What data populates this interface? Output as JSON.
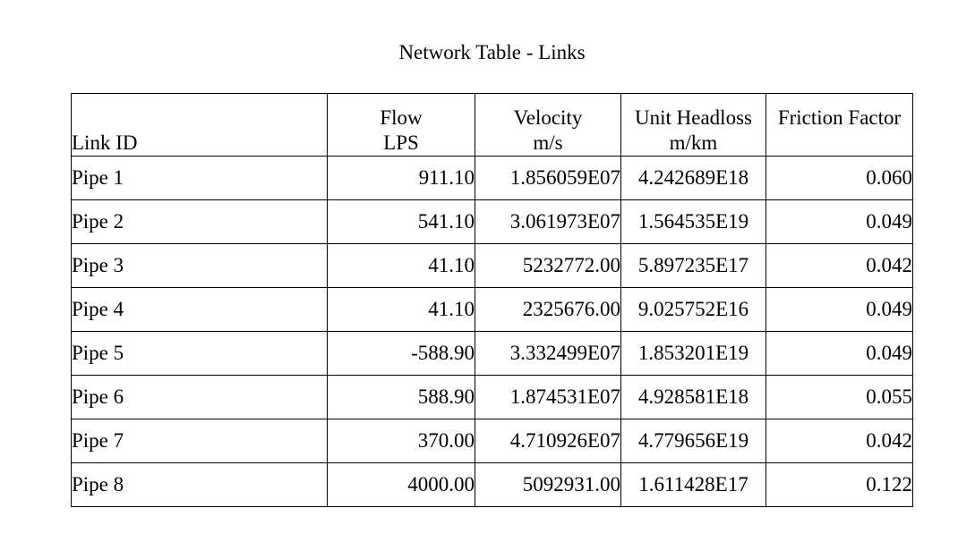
{
  "document": {
    "title": "Network Table - Links"
  },
  "table": {
    "headers": {
      "link_id": "Link ID",
      "flow": {
        "name": "Flow",
        "unit": "LPS"
      },
      "velocity": {
        "name": "Velocity",
        "unit": "m/s"
      },
      "unit_headloss": {
        "name": "Unit Headloss",
        "unit": "m/km"
      },
      "friction_factor": {
        "name": "Friction Factor",
        "unit": ""
      }
    },
    "rows": [
      {
        "link_id": "Pipe 1",
        "flow": "911.10",
        "velocity": "1.856059E07",
        "unit_headloss": "4.242689E18",
        "friction_factor": "0.060"
      },
      {
        "link_id": "Pipe 2",
        "flow": "541.10",
        "velocity": "3.061973E07",
        "unit_headloss": "1.564535E19",
        "friction_factor": "0.049"
      },
      {
        "link_id": "Pipe 3",
        "flow": "41.10",
        "velocity": "5232772.00",
        "unit_headloss": "5.897235E17",
        "friction_factor": "0.042"
      },
      {
        "link_id": "Pipe 4",
        "flow": "41.10",
        "velocity": "2325676.00",
        "unit_headloss": "9.025752E16",
        "friction_factor": "0.049"
      },
      {
        "link_id": "Pipe 5",
        "flow": "-588.90",
        "velocity": "3.332499E07",
        "unit_headloss": "1.853201E19",
        "friction_factor": "0.049"
      },
      {
        "link_id": "Pipe 6",
        "flow": "588.90",
        "velocity": "1.874531E07",
        "unit_headloss": "4.928581E18",
        "friction_factor": "0.055"
      },
      {
        "link_id": "Pipe 7",
        "flow": "370.00",
        "velocity": "4.710926E07",
        "unit_headloss": "4.779656E19",
        "friction_factor": "0.042"
      },
      {
        "link_id": "Pipe 8",
        "flow": "4000.00",
        "velocity": "5092931.00",
        "unit_headloss": "1.611428E17",
        "friction_factor": "0.122"
      }
    ]
  }
}
